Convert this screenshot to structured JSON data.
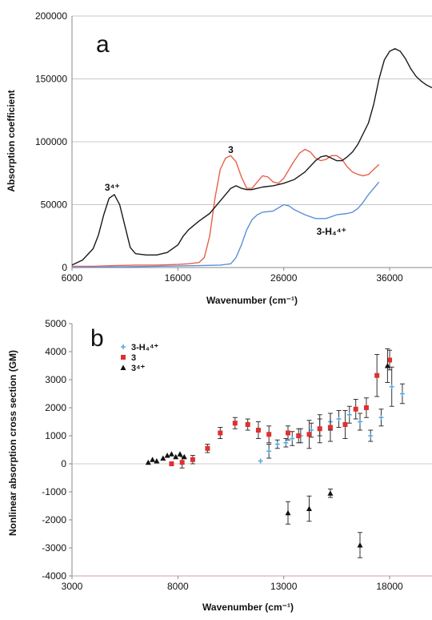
{
  "chart_data": [
    {
      "type": "line",
      "panel_label": "a",
      "xlabel": "Wavenumber (cm⁻¹)",
      "ylabel": "Absorption coefficient",
      "xlim": [
        6000,
        40000
      ],
      "ylim": [
        0,
        200000
      ],
      "x_ticks": [
        6000,
        16000,
        26000,
        36000
      ],
      "y_ticks": [
        0,
        50000,
        100000,
        150000,
        200000
      ],
      "grid": "horizontal",
      "series": [
        {
          "name": "3",
          "color": "#e8604a",
          "x": [
            6000,
            8000,
            10000,
            12000,
            14000,
            16000,
            17000,
            18000,
            18500,
            19000,
            19500,
            20000,
            20500,
            21000,
            21500,
            22000,
            22500,
            23000,
            23500,
            24000,
            24500,
            25000,
            25500,
            26000,
            26500,
            27000,
            27500,
            28000,
            28500,
            29000,
            29500,
            30000,
            30500,
            31000,
            31500,
            32000,
            32500,
            33000,
            33500,
            34000,
            34500,
            35000
          ],
          "y": [
            1000,
            1000,
            1500,
            2000,
            2000,
            2500,
            3000,
            4000,
            8000,
            25000,
            55000,
            78000,
            87000,
            89000,
            84000,
            72000,
            63000,
            63000,
            68000,
            73000,
            72000,
            68000,
            67000,
            71000,
            78000,
            85000,
            91000,
            94000,
            92000,
            87000,
            85000,
            86000,
            89000,
            89000,
            86000,
            80000,
            76000,
            74000,
            73000,
            74000,
            78000,
            82000
          ]
        },
        {
          "name": "3⁴⁺",
          "color": "#1a1a1a",
          "x": [
            6000,
            7000,
            8000,
            8500,
            9000,
            9500,
            10000,
            10500,
            11000,
            11500,
            12000,
            13000,
            14000,
            15000,
            16000,
            16500,
            17000,
            18000,
            19000,
            20000,
            21000,
            21500,
            22000,
            22500,
            23000,
            24000,
            25000,
            26000,
            27000,
            28000,
            29000,
            29500,
            30000,
            31000,
            31500,
            32000,
            32500,
            33000,
            34000,
            34500,
            35000,
            35500,
            36000,
            36500,
            37000,
            37500,
            38000,
            38500,
            39000,
            39500,
            40000
          ],
          "y": [
            2000,
            6000,
            15000,
            26000,
            42000,
            55000,
            58000,
            50000,
            33000,
            16000,
            11000,
            10000,
            10000,
            12000,
            18000,
            25000,
            30000,
            37000,
            43000,
            53000,
            63000,
            65000,
            63000,
            62000,
            62000,
            64000,
            65000,
            67000,
            70000,
            76000,
            85000,
            88000,
            89000,
            85000,
            85000,
            88000,
            92000,
            98000,
            115000,
            130000,
            150000,
            165000,
            172000,
            174000,
            172000,
            166000,
            158000,
            152000,
            148000,
            145000,
            143000
          ]
        },
        {
          "name": "3-H₄⁴⁺",
          "color": "#5b8fd6",
          "x": [
            6000,
            10000,
            14000,
            18000,
            20000,
            21000,
            21500,
            22000,
            22500,
            23000,
            23500,
            24000,
            25000,
            26000,
            26500,
            27000,
            28000,
            29000,
            30000,
            31000,
            32000,
            32500,
            33000,
            33500,
            34000,
            34500,
            35000
          ],
          "y": [
            0,
            500,
            1000,
            1500,
            2000,
            3000,
            8000,
            18000,
            30000,
            38000,
            42000,
            44000,
            45000,
            50000,
            49000,
            46000,
            42000,
            39000,
            39000,
            42000,
            43000,
            44000,
            47000,
            52000,
            58000,
            63000,
            68000
          ]
        }
      ],
      "annotations": [
        {
          "text": "3",
          "x": 21000,
          "y": 91000
        },
        {
          "text": "3⁴⁺",
          "x": 9800,
          "y": 61000
        },
        {
          "text": "3-H₄⁴⁺",
          "x": 30500,
          "y": 26000
        }
      ]
    },
    {
      "type": "scatter",
      "panel_label": "b",
      "xlabel": "Wavenumber (cm⁻¹)",
      "ylabel": "Nonlinear absorption cross section (GM)",
      "xlim": [
        3000,
        20000
      ],
      "ylim": [
        -4000,
        5000
      ],
      "x_ticks": [
        3000,
        8000,
        13000,
        18000
      ],
      "y_ticks": [
        -4000,
        -3000,
        -2000,
        -1000,
        0,
        1000,
        2000,
        3000,
        4000,
        5000
      ],
      "legend": "top-left",
      "series": [
        {
          "name": "3-H₄⁴⁺",
          "color": "#5aa8e0",
          "marker": "plus",
          "points": [
            {
              "x": 11900,
              "y": 100,
              "err": 0
            },
            {
              "x": 12300,
              "y": 450,
              "err": 250
            },
            {
              "x": 12700,
              "y": 700,
              "err": 150
            },
            {
              "x": 13100,
              "y": 750,
              "err": 150
            },
            {
              "x": 13400,
              "y": 900,
              "err": 250
            },
            {
              "x": 13800,
              "y": 1000,
              "err": 250
            },
            {
              "x": 14300,
              "y": 1200,
              "err": 250
            },
            {
              "x": 14700,
              "y": 1300,
              "err": 300
            },
            {
              "x": 15200,
              "y": 1500,
              "err": 300
            },
            {
              "x": 15600,
              "y": 1600,
              "err": 300
            },
            {
              "x": 16100,
              "y": 1750,
              "err": 300
            },
            {
              "x": 16600,
              "y": 1500,
              "err": 300
            },
            {
              "x": 17100,
              "y": 1000,
              "err": 200
            },
            {
              "x": 17600,
              "y": 1650,
              "err": 300
            },
            {
              "x": 18100,
              "y": 2750,
              "err": 700
            },
            {
              "x": 18600,
              "y": 2500,
              "err": 350
            }
          ]
        },
        {
          "name": "3",
          "color": "#e03030",
          "marker": "square",
          "points": [
            {
              "x": 7700,
              "y": 0,
              "err": 0
            },
            {
              "x": 8200,
              "y": 50,
              "err": 200
            },
            {
              "x": 8700,
              "y": 150,
              "err": 150
            },
            {
              "x": 9400,
              "y": 550,
              "err": 150
            },
            {
              "x": 10000,
              "y": 1100,
              "err": 200
            },
            {
              "x": 10700,
              "y": 1450,
              "err": 200
            },
            {
              "x": 11300,
              "y": 1400,
              "err": 200
            },
            {
              "x": 11800,
              "y": 1200,
              "err": 300
            },
            {
              "x": 12300,
              "y": 1050,
              "err": 300
            },
            {
              "x": 13200,
              "y": 1100,
              "err": 250
            },
            {
              "x": 13700,
              "y": 1000,
              "err": 250
            },
            {
              "x": 14200,
              "y": 1050,
              "err": 500
            },
            {
              "x": 14700,
              "y": 1250,
              "err": 500
            },
            {
              "x": 15200,
              "y": 1300,
              "err": 500
            },
            {
              "x": 15900,
              "y": 1400,
              "err": 500
            },
            {
              "x": 16400,
              "y": 1950,
              "err": 350
            },
            {
              "x": 16900,
              "y": 2000,
              "err": 350
            },
            {
              "x": 17400,
              "y": 3150,
              "err": 750
            },
            {
              "x": 18000,
              "y": 3700,
              "err": 350
            }
          ]
        },
        {
          "name": "3⁴⁺",
          "color": "#111111",
          "marker": "triangle",
          "points": [
            {
              "x": 6600,
              "y": 50,
              "err": 0
            },
            {
              "x": 6800,
              "y": 150,
              "err": 0
            },
            {
              "x": 7000,
              "y": 100,
              "err": 0
            },
            {
              "x": 7300,
              "y": 200,
              "err": 0
            },
            {
              "x": 7500,
              "y": 300,
              "err": 0
            },
            {
              "x": 7700,
              "y": 350,
              "err": 0
            },
            {
              "x": 7900,
              "y": 250,
              "err": 0
            },
            {
              "x": 8100,
              "y": 350,
              "err": 0
            },
            {
              "x": 8300,
              "y": 250,
              "err": 0
            },
            {
              "x": 13200,
              "y": -1750,
              "err": 400
            },
            {
              "x": 14200,
              "y": -1600,
              "err": 450
            },
            {
              "x": 15200,
              "y": -1050,
              "err": 150
            },
            {
              "x": 16600,
              "y": -2900,
              "err": 450
            },
            {
              "x": 17900,
              "y": 3500,
              "err": 600
            }
          ]
        }
      ]
    }
  ]
}
